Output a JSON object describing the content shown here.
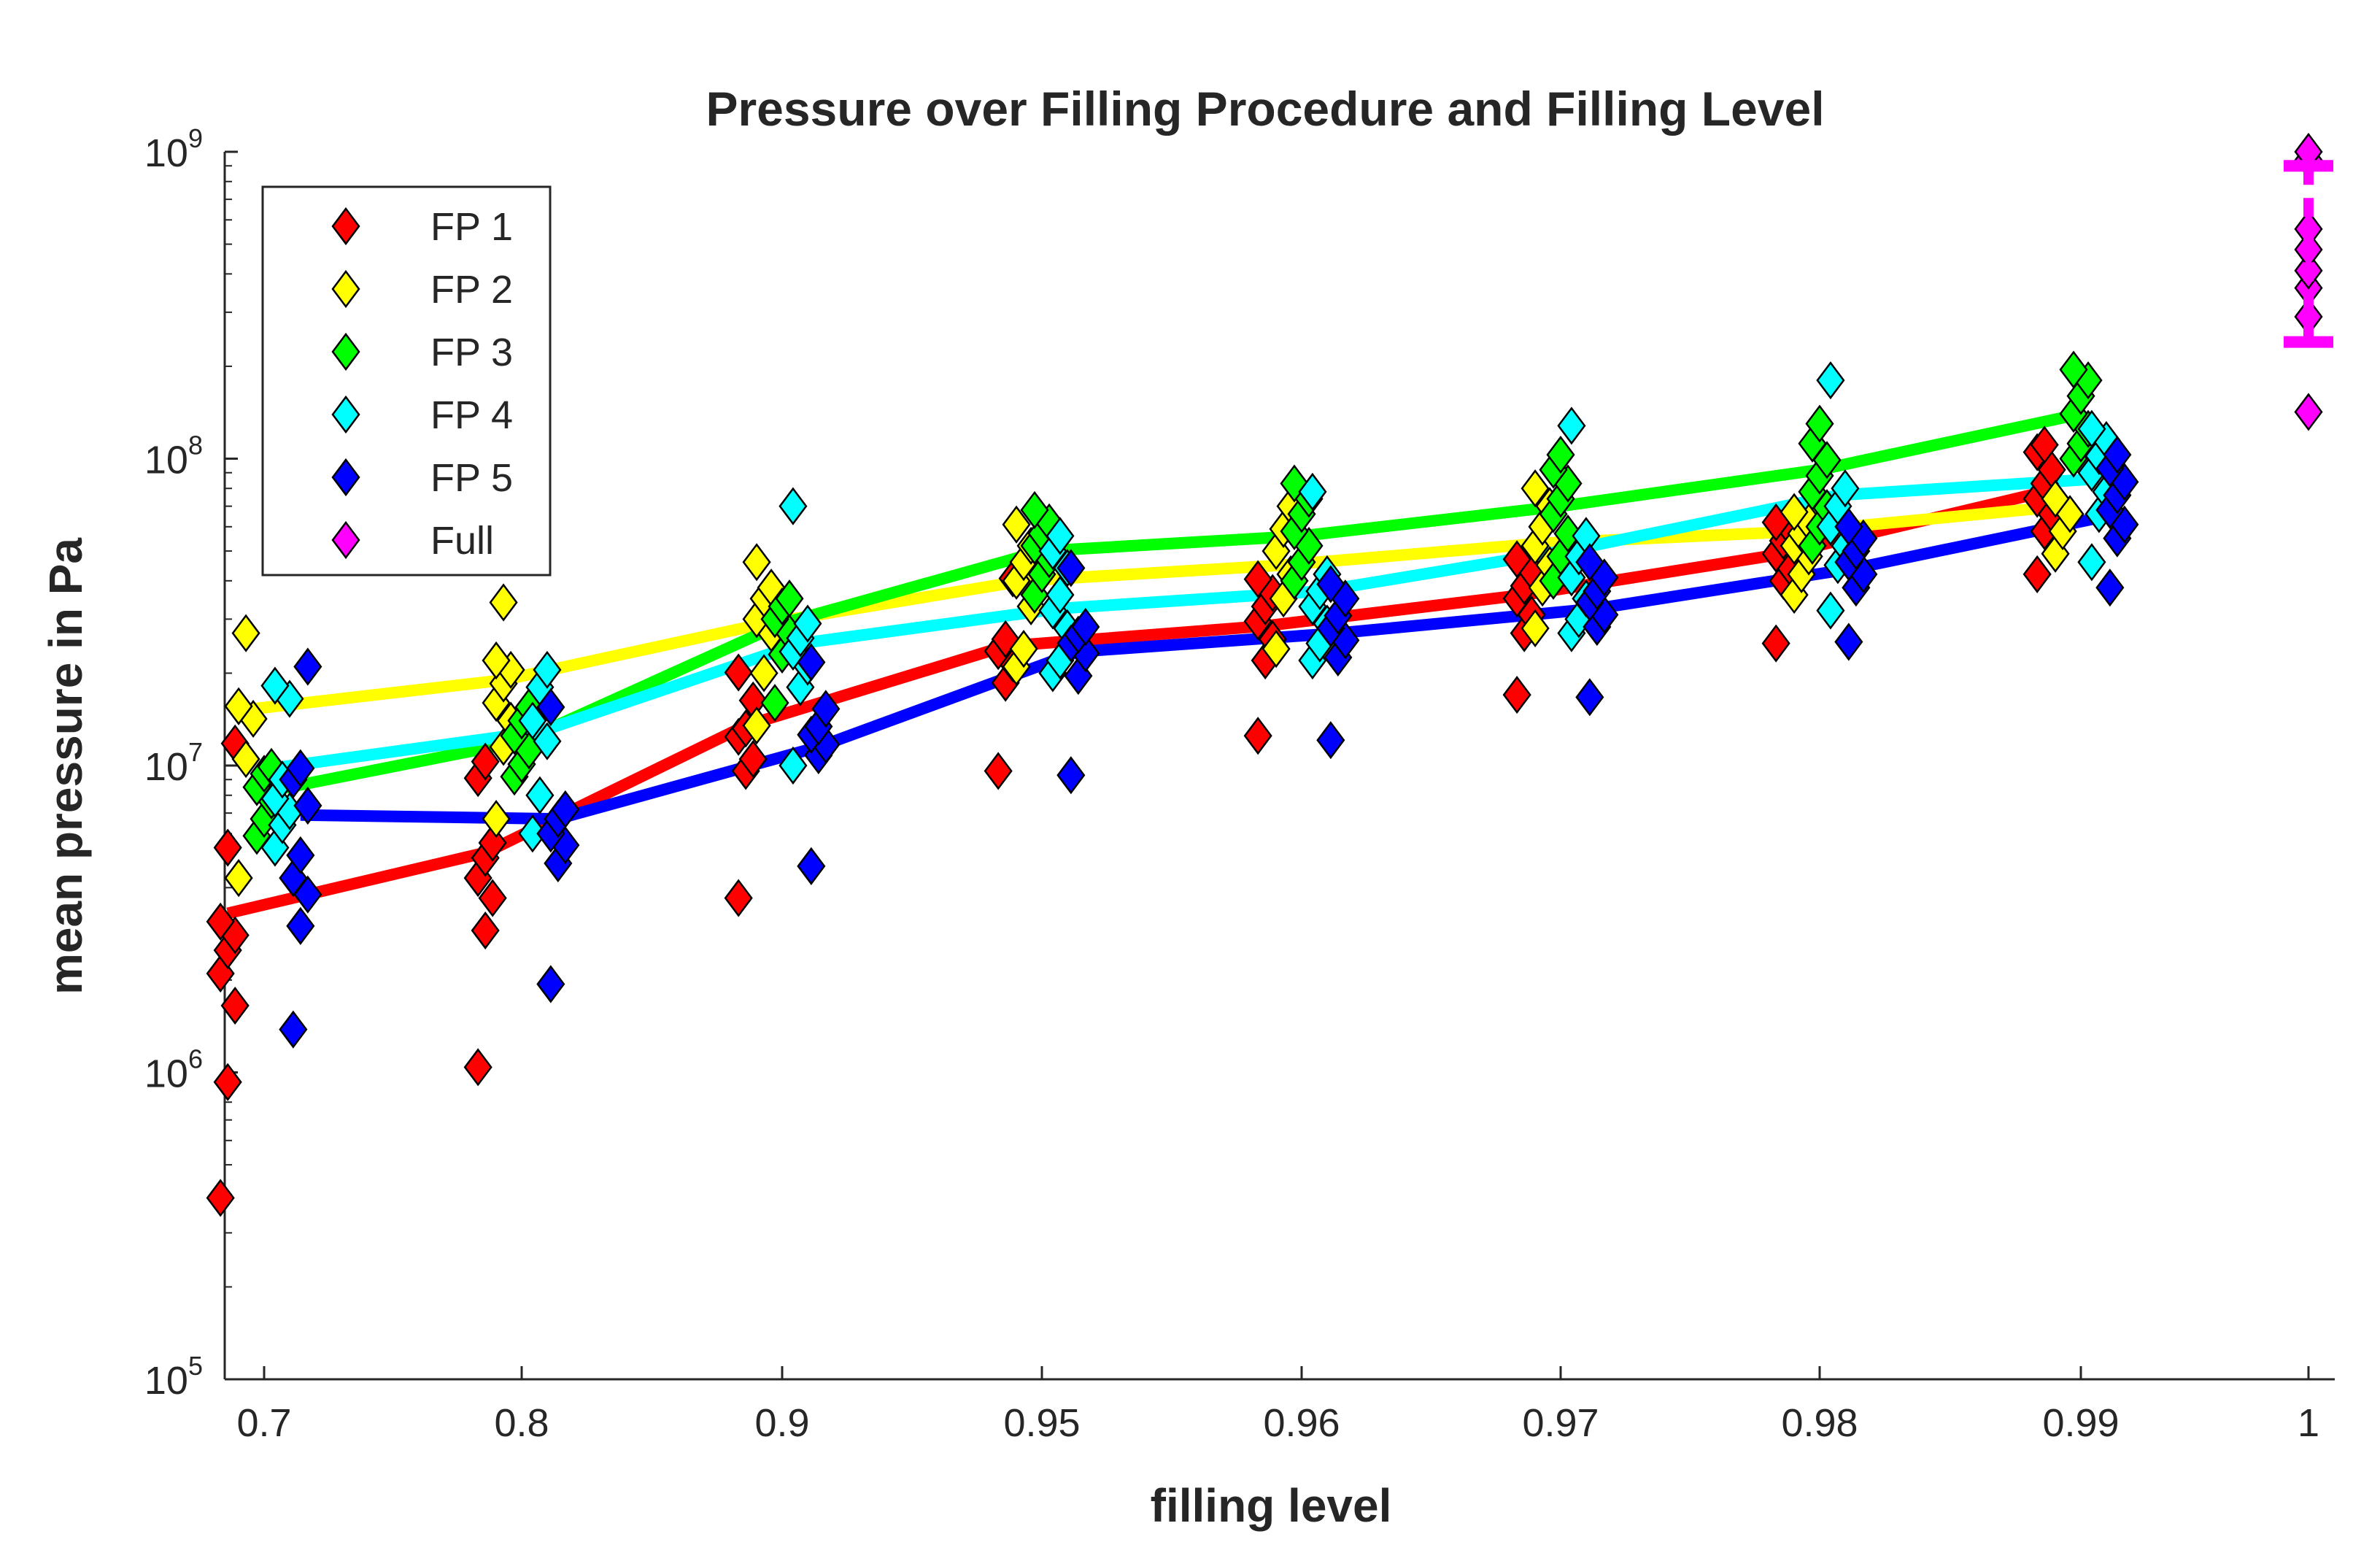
{
  "chart_data": {
    "type": "scatter",
    "title": "Pressure over Filling Procedure and Filling Level",
    "xlabel": "filling level",
    "ylabel": "mean pressure in Pa",
    "yscale": "log",
    "ylim": [
      100000,
      1000000000
    ],
    "categories": [
      "0.7",
      "0.8",
      "0.9",
      "0.95",
      "0.96",
      "0.97",
      "0.98",
      "0.99",
      "1"
    ],
    "y_ticks": [
      {
        "base": "10",
        "exp": "5",
        "value": 100000
      },
      {
        "base": "10",
        "exp": "6",
        "value": 1000000
      },
      {
        "base": "10",
        "exp": "7",
        "value": 10000000
      },
      {
        "base": "10",
        "exp": "8",
        "value": 100000000
      },
      {
        "base": "10",
        "exp": "9",
        "value": 1000000000
      }
    ],
    "legend_position": "top-left",
    "series": [
      {
        "name": "FP 1",
        "color": "#ff0000",
        "offset": -0.14,
        "mean": [
          3300000,
          5200000,
          13500000,
          24500000,
          28500000,
          36000000,
          49000000,
          78000000
        ],
        "points": [
          [
            390000,
            930000,
            1650000,
            2100000,
            2500000,
            2800000,
            3100000,
            5400000,
            11800000
          ],
          [
            1040000,
            2900000,
            3700000,
            4300000,
            5000000,
            5600000,
            9100000,
            10300000
          ],
          [
            3700000,
            9600000,
            10500000,
            12400000,
            13200000,
            16300000,
            20100000
          ],
          [
            9600000,
            18600000,
            21500000,
            23600000,
            25800000,
            40700000
          ],
          [
            12500000,
            22000000,
            25800000,
            29500000,
            33000000,
            36500000,
            40500000
          ],
          [
            17000000,
            27000000,
            31000000,
            35000000,
            38500000,
            43000000,
            47000000
          ],
          [
            25000000,
            40000000,
            44000000,
            49000000,
            54000000,
            59000000,
            62000000
          ],
          [
            42000000,
            58000000,
            66000000,
            74000000,
            83000000,
            92000000,
            105000000,
            111000000
          ]
        ]
      },
      {
        "name": "FP 2",
        "color": "#ffff00",
        "offset": -0.07,
        "mean": [
          15200000,
          19000000,
          29000000,
          40000000,
          45000000,
          53000000,
          58000000,
          70000000
        ],
        "points": [
          [
            4300000,
            10500000,
            14200000,
            15600000,
            27000000
          ],
          [
            6700000,
            11500000,
            14000000,
            16000000,
            18500000,
            20500000,
            22000000,
            34000000
          ],
          [
            13500000,
            20000000,
            27000000,
            30000000,
            35000000,
            38000000,
            46000000
          ],
          [
            21000000,
            24000000,
            33000000,
            40000000,
            46000000,
            52000000,
            61000000
          ],
          [
            24000000,
            35000000,
            42000000,
            50000000,
            59000000,
            70000000
          ],
          [
            28000000,
            38000000,
            45000000,
            52000000,
            60000000,
            70000000,
            80000000
          ],
          [
            36000000,
            42000000,
            48000000,
            52000000,
            57000000,
            62000000,
            67000000
          ],
          [
            49000000,
            58000000,
            66000000,
            74000000
          ]
        ]
      },
      {
        "name": "FP 3",
        "color": "#00ff00",
        "offset": 0.0,
        "mean": [
          8200000,
          12000000,
          29000000,
          50000000,
          56000000,
          70000000,
          92000000,
          140000000
        ],
        "points": [
          [
            5900000,
            6700000,
            7700000,
            8500000,
            9400000,
            9900000
          ],
          [
            9200000,
            10100000,
            11200000,
            12500000,
            14000000,
            15500000
          ],
          [
            16000000,
            23000000,
            27000000,
            30000000,
            33000000,
            35000000
          ],
          [
            36000000,
            42000000,
            47000000,
            52000000,
            57000000,
            62000000,
            68000000
          ],
          [
            40000000,
            46000000,
            52000000,
            58000000,
            66000000,
            74000000,
            83000000
          ],
          [
            40000000,
            48000000,
            57000000,
            66000000,
            74000000,
            83000000,
            92000000,
            103000000
          ],
          [
            52000000,
            60000000,
            69000000,
            78000000,
            88000000,
            99000000,
            112000000,
            130000000
          ],
          [
            100000000,
            112000000,
            125000000,
            140000000,
            160000000,
            180000000,
            195000000
          ]
        ]
      },
      {
        "name": "FP 4",
        "color": "#00ffff",
        "offset": 0.07,
        "mean": [
          9900000,
          12900000,
          25000000,
          32500000,
          37000000,
          51000000,
          76000000,
          86000000
        ],
        "points": [
          [
            5400000,
            6400000,
            7100000,
            7800000,
            9000000,
            16500000,
            18200000
          ],
          [
            6000000,
            8000000,
            12000000,
            14000000,
            18000000,
            20500000
          ],
          [
            10000000,
            18000000,
            21000000,
            23500000,
            26000000,
            29000000,
            70000000
          ],
          [
            20000000,
            22000000,
            28000000,
            32000000,
            36000000,
            44000000,
            50000000,
            56000000
          ],
          [
            22000000,
            25000000,
            29000000,
            33000000,
            37000000,
            42000000,
            78000000
          ],
          [
            27000000,
            30000000,
            35000000,
            41000000,
            48000000,
            56000000,
            128000000
          ],
          [
            32000000,
            45000000,
            52000000,
            60000000,
            70000000,
            80000000,
            180000000
          ],
          [
            46000000,
            66000000,
            78000000,
            90000000,
            102000000,
            115000000,
            125000000
          ]
        ]
      },
      {
        "name": "FP 5",
        "color": "#0000ff",
        "offset": 0.14,
        "mean": [
          6900000,
          6700000,
          11500000,
          23500000,
          27000000,
          32500000,
          44000000,
          66000000
        ],
        "points": [
          [
            1380000,
            3000000,
            3800000,
            4300000,
            5100000,
            7400000,
            9000000,
            9800000,
            21000000
          ],
          [
            1940000,
            4800000,
            5500000,
            6000000,
            6700000,
            7200000,
            15500000
          ],
          [
            4700000,
            10800000,
            11700000,
            12600000,
            13400000,
            15300000,
            21700000
          ],
          [
            9300000,
            19600000,
            23200000,
            25000000,
            26700000,
            28300000,
            44000000
          ],
          [
            12100000,
            22500000,
            25600000,
            28000000,
            30800000,
            35000000,
            39000000
          ],
          [
            16700000,
            28300000,
            31000000,
            34000000,
            37000000,
            41000000,
            46000000
          ],
          [
            25300000,
            38000000,
            42000000,
            46000000,
            50000000,
            55000000,
            60000000
          ],
          [
            38000000,
            55000000,
            61000000,
            68000000,
            76000000,
            84000000,
            93000000,
            103000000
          ]
        ]
      },
      {
        "name": "Full",
        "color": "#ff00ff",
        "offset": 0.0,
        "category": "1",
        "points": [
          [
            142000000,
            290000000,
            360000000,
            410000000,
            480000000,
            560000000,
            940000000,
            1000000000
          ]
        ],
        "errorbar": {
          "center": 550000000,
          "low": 240000000,
          "high": 900000000
        }
      }
    ]
  }
}
